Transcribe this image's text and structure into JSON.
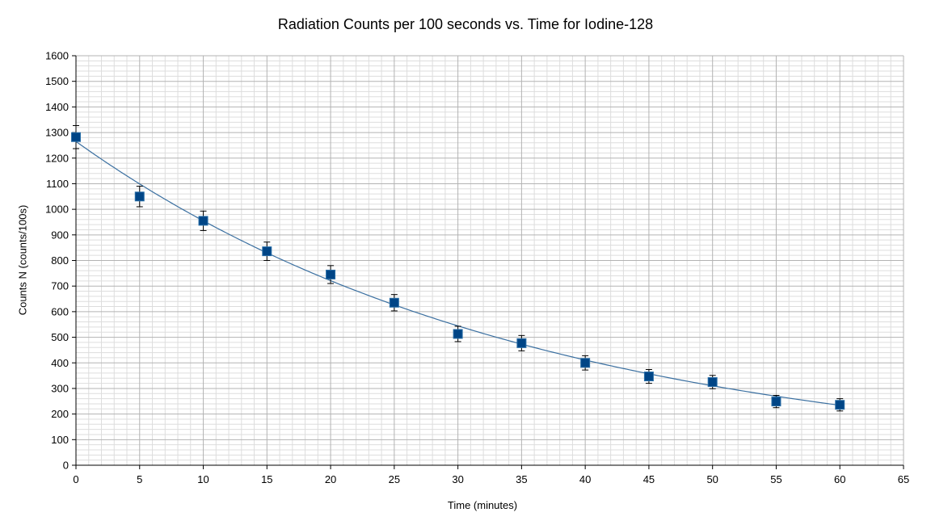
{
  "chart_data": {
    "type": "scatter",
    "title": "Radiation Counts per 100 seconds vs. Time for Iodine-128",
    "xlabel": "Time (minutes)",
    "ylabel": "Counts N (counts/100s)",
    "xlim": [
      0,
      65
    ],
    "ylim": [
      0,
      1600
    ],
    "xticks": [
      0,
      5,
      10,
      15,
      20,
      25,
      30,
      35,
      40,
      45,
      50,
      55,
      60,
      65
    ],
    "yticks": [
      0,
      100,
      200,
      300,
      400,
      500,
      600,
      700,
      800,
      900,
      1000,
      1100,
      1200,
      1300,
      1400,
      1500,
      1600
    ],
    "grid": true,
    "legend": "none",
    "series": [
      {
        "x": [
          0,
          5,
          10,
          15,
          20,
          25,
          30,
          35,
          40,
          45,
          50,
          55,
          60
        ],
        "y": [
          1282,
          1050,
          955,
          836,
          745,
          635,
          513,
          477,
          400,
          347,
          325,
          249,
          236
        ],
        "error": [
          45,
          40,
          38,
          36,
          35,
          32,
          30,
          30,
          28,
          27,
          26,
          24,
          24
        ],
        "marker": "square",
        "color": "#004586",
        "edge_color": "#2a6fa8"
      }
    ],
    "trendline": {
      "type": "exponential",
      "a": 1265,
      "b": -0.0281,
      "x_range": [
        0,
        60
      ],
      "color": "#3a6fa0"
    },
    "colors": {
      "grid_major": "#b3b3b3",
      "grid_minor": "#dddddd",
      "error_bar": "#000000"
    }
  }
}
